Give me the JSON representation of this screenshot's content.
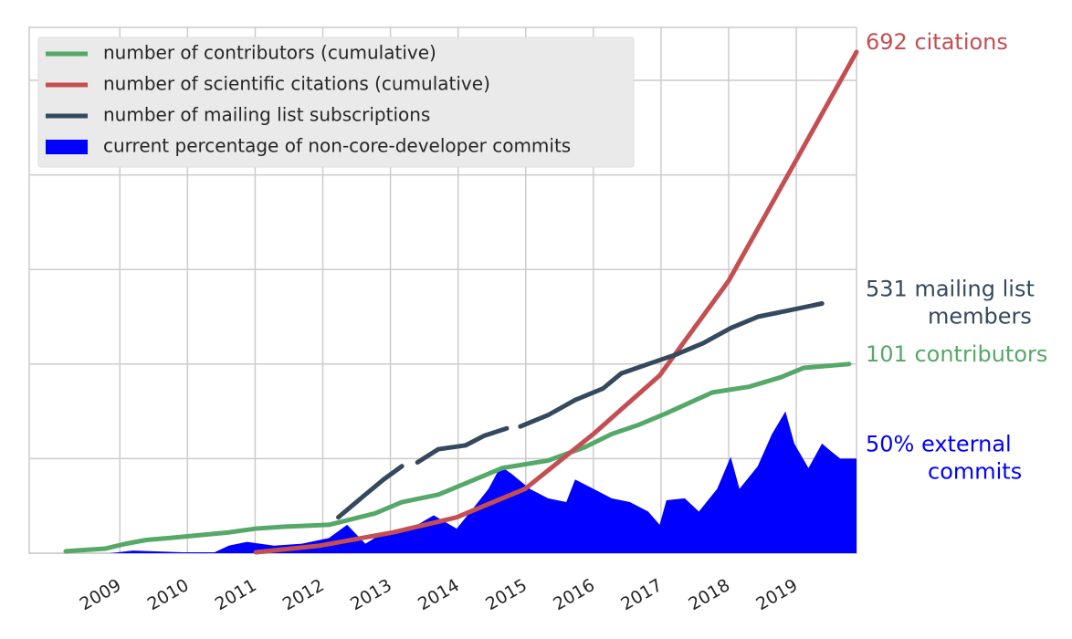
{
  "chart_data": {
    "type": "line",
    "xlim": [
      2007.66,
      2019.89
    ],
    "xticks": [
      2009,
      2010,
      2011,
      2012,
      2013,
      2014,
      2015,
      2016,
      2017,
      2018,
      2019
    ],
    "ylim": [
      0,
      278
    ],
    "yticks": [
      0,
      50,
      100,
      150,
      200,
      250
    ],
    "grid": true,
    "legend": "upper left",
    "series": [
      {
        "name": "number of contributors (cumulative)",
        "color": "#55a868",
        "kind": "line",
        "annotation": [
          "101 contributors"
        ],
        "x": [
          2008.2,
          2008.78,
          2009.09,
          2009.39,
          2009.73,
          2010.61,
          2011.01,
          2011.42,
          2012.09,
          2012.43,
          2012.77,
          2013.17,
          2013.71,
          2014.25,
          2014.65,
          2015.33,
          2015.87,
          2016.27,
          2016.68,
          2017.08,
          2017.76,
          2018.3,
          2018.77,
          2019.11,
          2019.78
        ],
        "values": [
          1,
          2.4,
          5,
          7,
          8,
          11,
          13,
          14,
          15,
          18,
          21,
          27,
          31,
          39,
          45,
          49,
          56,
          63,
          68,
          74,
          85,
          88,
          93,
          98,
          100
        ]
      },
      {
        "name": "number of scientific citations (cumulative)",
        "color": "#c44e52",
        "kind": "line",
        "annotation": [
          "692 citations"
        ],
        "x": [
          2011.01,
          2011.96,
          2013.04,
          2013.98,
          2014.99,
          2016.0,
          2016.98,
          2018.0,
          2018.97,
          2019.89
        ],
        "values": [
          0.5,
          4,
          11,
          19,
          34,
          63,
          94,
          144,
          206,
          265
        ]
      },
      {
        "name": "number of mailing list subscriptions",
        "color": "#34495e",
        "kind": "line",
        "annotation": [
          "531 mailing list",
          "members"
        ],
        "x": [
          2012.23,
          2012.43,
          2012.63,
          2012.9,
          2013.17,
          2013.3,
          2013.4,
          2013.71,
          2014.11,
          2014.38,
          2014.72,
          2014.82,
          2014.92,
          2015.33,
          2015.73,
          2016.14,
          2016.41,
          2016.81,
          2017.22,
          2017.62,
          2018.03,
          2018.43,
          2018.84,
          2019.38
        ],
        "values": [
          19,
          25,
          31,
          39,
          46,
          null,
          48,
          55,
          57,
          62,
          66,
          null,
          67,
          73,
          81,
          87,
          95,
          100,
          105,
          111,
          119,
          125,
          128,
          132
        ]
      },
      {
        "name": "current percentage of non-core-developer commits",
        "color": "#0000ff",
        "kind": "area",
        "annotation": [
          "50% external",
          "commits"
        ],
        "x": [
          2008.85,
          2009.19,
          2009.93,
          2010.4,
          2010.61,
          2010.88,
          2011.28,
          2011.69,
          2012.09,
          2012.36,
          2012.63,
          2012.9,
          2013.3,
          2013.64,
          2013.98,
          2014.25,
          2014.45,
          2014.63,
          2014.79,
          2015.06,
          2015.33,
          2015.6,
          2015.73,
          2016.0,
          2016.27,
          2016.54,
          2016.81,
          2016.98,
          2017.08,
          2017.35,
          2017.56,
          2017.83,
          2018.03,
          2018.16,
          2018.43,
          2018.64,
          2018.84,
          2018.97,
          2019.18,
          2019.38,
          2019.51,
          2019.65,
          2019.89
        ],
        "values": [
          0,
          1.4,
          0.5,
          0.5,
          4,
          6,
          4,
          5,
          8,
          15,
          5,
          11,
          13,
          20,
          13,
          25,
          34,
          46,
          42,
          34,
          29,
          27,
          39,
          34,
          29,
          27,
          22,
          15,
          28,
          29,
          22,
          34,
          51,
          34,
          46,
          63,
          75,
          58,
          45,
          58,
          54,
          50,
          50
        ]
      }
    ]
  }
}
